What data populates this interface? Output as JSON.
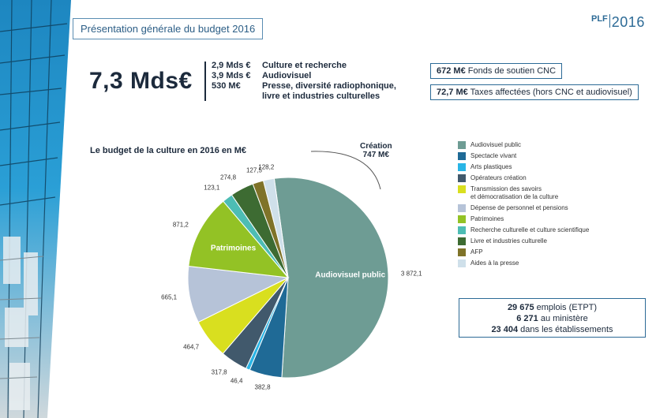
{
  "header": {
    "title": "Présentation générale du budget 2016"
  },
  "logo": {
    "plf": "PLF",
    "year": "2016"
  },
  "summary": {
    "total": "7,3 Mds€",
    "items": [
      {
        "amount": "2,9 Mds €",
        "label": "Culture et recherche"
      },
      {
        "amount": "3,9 Mds €",
        "label": "Audiovisuel"
      },
      {
        "amount": "530 M€",
        "label": "Presse, diversité radiophonique,",
        "label2": "livre et industries culturelles"
      }
    ]
  },
  "funds": [
    {
      "amount": "672 M€",
      "label": "Fonds de soutien CNC"
    },
    {
      "amount": "72,7 M€",
      "label": "Taxes affectées (hors CNC et audiovisuel)"
    }
  ],
  "jobs": {
    "line1_value": "29 675",
    "line1_label": "emplois (ETPT)",
    "line2_value": "6 271",
    "line2_label": "au ministère",
    "line3_value": "23 404",
    "line3_label": "dans les établissements"
  },
  "chart_data": {
    "type": "pie",
    "title": "Le budget de la culture en 2016 en M€",
    "annotation": {
      "line1": "Création",
      "line2": "747 M€"
    },
    "slices": [
      {
        "label": "Audiovisuel public",
        "value": 3872.1,
        "value_label": "3 872,1",
        "color": "#6e9c94",
        "inner_label": "Audiovisuel public"
      },
      {
        "label": "Spectacle vivant",
        "value": 382.8,
        "value_label": "382,8",
        "color": "#1f6a96"
      },
      {
        "label": "Arts plastiques",
        "value": 46.4,
        "value_label": "46,4",
        "color": "#29b5e6"
      },
      {
        "label": "Opérateurs création",
        "value": 317.8,
        "value_label": "317,8",
        "color": "#41596c"
      },
      {
        "label": "Transmission des savoirs et démocratisation de la culture",
        "label_line1": "Transmission des savoirs",
        "label_line2": "et démocratisation de la culture",
        "value": 464.7,
        "value_label": "464,7",
        "color": "#d9df1f"
      },
      {
        "label": "Dépense de personnel et pensions",
        "value": 665.1,
        "value_label": "665,1",
        "color": "#b6c3d8"
      },
      {
        "label": "Patrimoines",
        "value": 871.2,
        "value_label": "871,2",
        "color": "#93c225",
        "inner_label": "Patrimoines"
      },
      {
        "label": "Recherche culturelle et culture scientifique",
        "value": 123.1,
        "value_label": "123,1",
        "color": "#4dbdb4"
      },
      {
        "label": "Livre et industries culturelle",
        "value": 274.8,
        "value_label": "274,8",
        "color": "#3d6b32"
      },
      {
        "label": "AFP",
        "value": 127.5,
        "value_label": "127,5",
        "color": "#7f7329"
      },
      {
        "label": "Aides à la presse",
        "value": 128.2,
        "value_label": "128,2",
        "color": "#cfe0ea"
      }
    ],
    "legend_position": "right"
  }
}
